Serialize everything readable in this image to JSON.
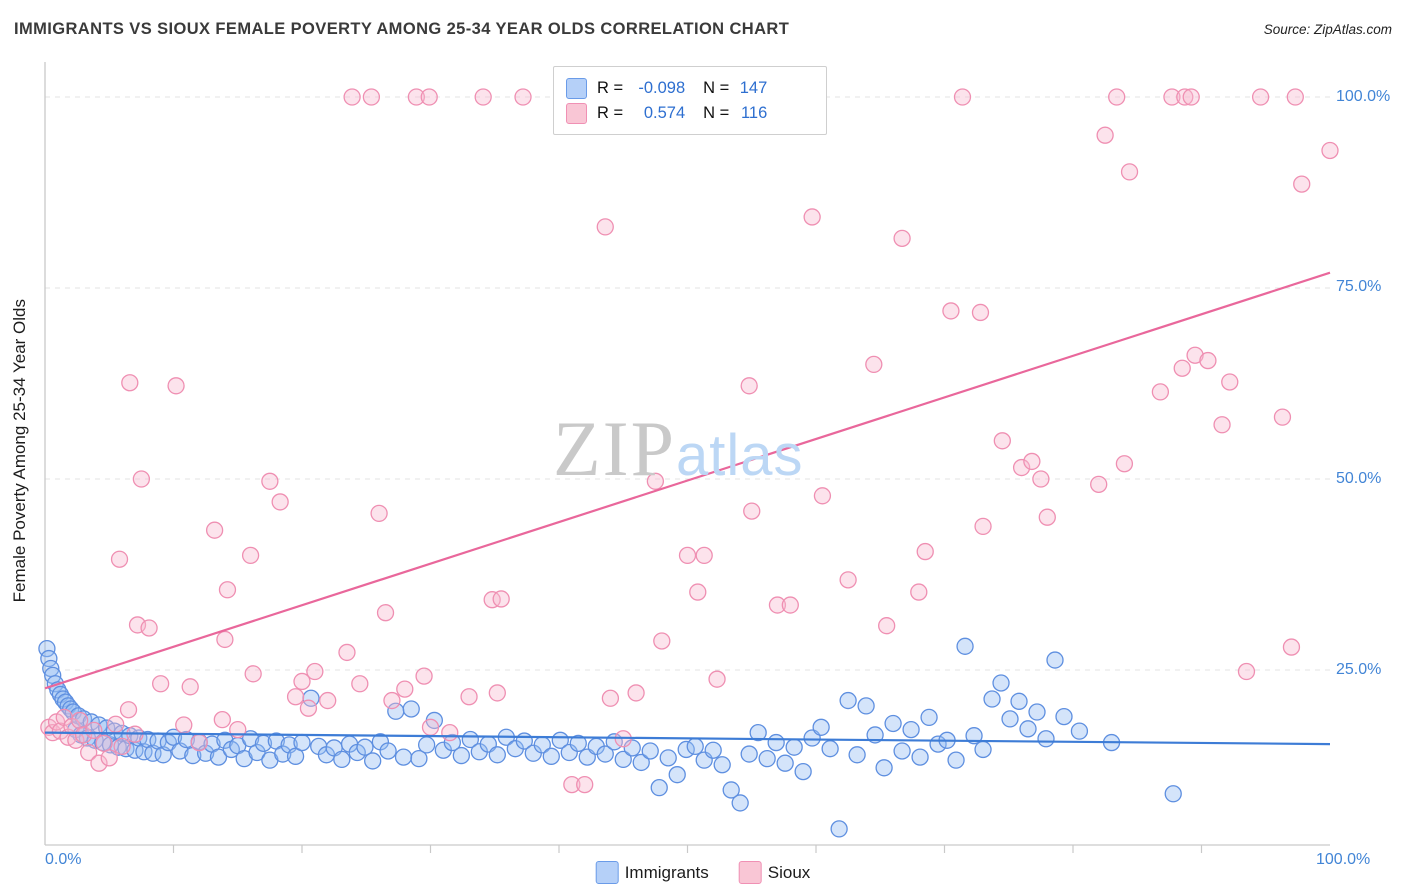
{
  "header": {
    "title": "IMMIGRANTS VS SIOUX FEMALE POVERTY AMONG 25-34 YEAR OLDS CORRELATION CHART",
    "source": "Source: ZipAtlas.com"
  },
  "stats_box": {
    "rows": [
      {
        "series": "Immigrants",
        "r_label": "R =",
        "r_value": "-0.098",
        "n_label": "N =",
        "n_value": "147"
      },
      {
        "series": "Sioux",
        "r_label": "R =",
        "r_value": "0.574",
        "n_label": "N =",
        "n_value": "116"
      }
    ]
  },
  "watermark": {
    "zip": "ZIP",
    "atlas": "atlas"
  },
  "y_axis": {
    "label": "Female Poverty Among 25-34 Year Olds",
    "ticks": [
      "100.0%",
      "75.0%",
      "50.0%",
      "25.0%"
    ]
  },
  "x_axis": {
    "min_label": "0.0%",
    "max_label": "100.0%"
  },
  "legend": [
    {
      "label": "Immigrants",
      "fill": "#b5d0f8",
      "stroke": "#6a9be8"
    },
    {
      "label": "Sioux",
      "fill": "#f9c6d5",
      "stroke": "#f090b4"
    }
  ],
  "chart_data": {
    "type": "scatter",
    "title": "IMMIGRANTS VS SIOUX FEMALE POVERTY AMONG 25-34 YEAR OLDS CORRELATION CHART",
    "xlabel": "",
    "ylabel": "Female Poverty Among 25-34 Year Olds",
    "xlim": [
      0,
      100
    ],
    "ylim": [
      0,
      105
    ],
    "grid": "horizontal-dashed",
    "gridlines": [
      100,
      75,
      50,
      25
    ],
    "legend_position": "bottom-center",
    "series": [
      {
        "name": "Immigrants",
        "r": -0.098,
        "n": 147,
        "fill": "#93bbf2",
        "stroke": "#5e8fe0",
        "points": [
          [
            0.15,
            27.8
          ],
          [
            0.3,
            26.5
          ],
          [
            0.45,
            25.2
          ],
          [
            0.6,
            24.3
          ],
          [
            0.8,
            23.2
          ],
          [
            1.0,
            22.4
          ],
          [
            1.2,
            21.8
          ],
          [
            1.4,
            21.2
          ],
          [
            1.6,
            20.8
          ],
          [
            1.8,
            20.3
          ],
          [
            2.0,
            19.9
          ],
          [
            2.2,
            19.5
          ],
          [
            2.4,
            17.2
          ],
          [
            2.6,
            19.0
          ],
          [
            2.8,
            16.5
          ],
          [
            3.0,
            18.6
          ],
          [
            3.3,
            16.1
          ],
          [
            3.6,
            18.2
          ],
          [
            3.9,
            15.8
          ],
          [
            4.2,
            17.8
          ],
          [
            4.5,
            15.5
          ],
          [
            4.8,
            17.4
          ],
          [
            5.1,
            15.2
          ],
          [
            5.4,
            17.0
          ],
          [
            5.7,
            14.9
          ],
          [
            6.0,
            16.7
          ],
          [
            6.3,
            14.7
          ],
          [
            6.6,
            16.4
          ],
          [
            7.0,
            14.5
          ],
          [
            7.3,
            16.1
          ],
          [
            7.7,
            14.3
          ],
          [
            8.0,
            15.9
          ],
          [
            8.4,
            14.1
          ],
          [
            8.8,
            15.7
          ],
          [
            9.2,
            13.9
          ],
          [
            9.6,
            15.5
          ],
          [
            10.0,
            16.2
          ],
          [
            10.5,
            14.4
          ],
          [
            11.0,
            15.9
          ],
          [
            11.5,
            13.8
          ],
          [
            12.0,
            15.6
          ],
          [
            12.5,
            14.1
          ],
          [
            13.0,
            15.3
          ],
          [
            13.5,
            13.6
          ],
          [
            14.0,
            15.8
          ],
          [
            14.5,
            14.6
          ],
          [
            15.0,
            15.1
          ],
          [
            15.5,
            13.4
          ],
          [
            16.0,
            16.0
          ],
          [
            16.5,
            14.2
          ],
          [
            17.0,
            15.4
          ],
          [
            17.5,
            13.2
          ],
          [
            18.0,
            15.7
          ],
          [
            18.5,
            14.0
          ],
          [
            19.0,
            15.2
          ],
          [
            19.5,
            13.7
          ],
          [
            20.0,
            15.5
          ],
          [
            20.7,
            21.3
          ],
          [
            21.3,
            15.0
          ],
          [
            21.9,
            13.9
          ],
          [
            22.5,
            14.8
          ],
          [
            23.1,
            13.3
          ],
          [
            23.7,
            15.3
          ],
          [
            24.3,
            14.2
          ],
          [
            24.9,
            14.9
          ],
          [
            25.5,
            13.1
          ],
          [
            26.1,
            15.6
          ],
          [
            26.7,
            14.4
          ],
          [
            27.3,
            19.6
          ],
          [
            27.9,
            13.6
          ],
          [
            28.5,
            19.9
          ],
          [
            29.1,
            13.4
          ],
          [
            29.7,
            15.2
          ],
          [
            30.3,
            18.4
          ],
          [
            31.0,
            14.5
          ],
          [
            31.7,
            15.5
          ],
          [
            32.4,
            13.8
          ],
          [
            33.1,
            15.9
          ],
          [
            33.8,
            14.3
          ],
          [
            34.5,
            15.3
          ],
          [
            35.2,
            13.9
          ],
          [
            35.9,
            16.2
          ],
          [
            36.6,
            14.7
          ],
          [
            37.3,
            15.7
          ],
          [
            38.0,
            14.1
          ],
          [
            38.7,
            15.2
          ],
          [
            39.4,
            13.7
          ],
          [
            40.1,
            15.8
          ],
          [
            40.8,
            14.2
          ],
          [
            41.5,
            15.4
          ],
          [
            42.2,
            13.6
          ],
          [
            42.9,
            15.0
          ],
          [
            43.6,
            14.0
          ],
          [
            44.3,
            15.6
          ],
          [
            45.0,
            13.3
          ],
          [
            45.7,
            14.8
          ],
          [
            46.4,
            12.9
          ],
          [
            47.1,
            14.4
          ],
          [
            47.8,
            9.6
          ],
          [
            48.5,
            13.5
          ],
          [
            49.2,
            11.3
          ],
          [
            49.9,
            14.6
          ],
          [
            50.6,
            15.0
          ],
          [
            51.3,
            13.2
          ],
          [
            52.0,
            14.5
          ],
          [
            52.7,
            12.6
          ],
          [
            53.4,
            9.3
          ],
          [
            54.1,
            7.6
          ],
          [
            54.8,
            14.0
          ],
          [
            55.5,
            16.8
          ],
          [
            56.2,
            13.4
          ],
          [
            56.9,
            15.5
          ],
          [
            57.6,
            12.8
          ],
          [
            58.3,
            14.9
          ],
          [
            59.0,
            11.7
          ],
          [
            59.7,
            16.1
          ],
          [
            60.4,
            17.5
          ],
          [
            61.1,
            14.7
          ],
          [
            61.8,
            4.2
          ],
          [
            62.5,
            21.0
          ],
          [
            63.2,
            13.9
          ],
          [
            63.9,
            20.3
          ],
          [
            64.6,
            16.5
          ],
          [
            65.3,
            12.2
          ],
          [
            66.0,
            18.0
          ],
          [
            66.7,
            14.4
          ],
          [
            67.4,
            17.2
          ],
          [
            68.1,
            13.6
          ],
          [
            68.8,
            18.8
          ],
          [
            69.5,
            15.3
          ],
          [
            70.2,
            15.8
          ],
          [
            70.9,
            13.2
          ],
          [
            71.6,
            28.1
          ],
          [
            72.3,
            16.4
          ],
          [
            73.0,
            14.6
          ],
          [
            73.7,
            21.2
          ],
          [
            74.4,
            23.3
          ],
          [
            75.1,
            18.6
          ],
          [
            75.8,
            20.9
          ],
          [
            76.5,
            17.3
          ],
          [
            77.2,
            19.5
          ],
          [
            77.9,
            16.0
          ],
          [
            78.6,
            26.3
          ],
          [
            79.3,
            18.9
          ],
          [
            80.5,
            17.0
          ],
          [
            83.0,
            15.5
          ],
          [
            87.8,
            8.8
          ]
        ]
      },
      {
        "name": "Sioux",
        "r": 0.574,
        "n": 116,
        "fill": "#f8bad0",
        "stroke": "#ef8fb2",
        "points": [
          [
            23.9,
            100
          ],
          [
            25.4,
            100
          ],
          [
            28.9,
            100
          ],
          [
            29.9,
            100
          ],
          [
            34.1,
            100
          ],
          [
            37.2,
            100
          ],
          [
            71.4,
            100
          ],
          [
            83.4,
            100
          ],
          [
            87.7,
            100
          ],
          [
            88.7,
            100
          ],
          [
            89.2,
            100
          ],
          [
            94.6,
            100
          ],
          [
            97.3,
            100
          ],
          [
            43.6,
            83.0
          ],
          [
            59.7,
            84.3
          ],
          [
            66.7,
            81.5
          ],
          [
            82.5,
            95.0
          ],
          [
            84.4,
            90.2
          ],
          [
            97.8,
            88.6
          ],
          [
            100.0,
            93.0
          ],
          [
            6.6,
            62.6
          ],
          [
            10.2,
            62.2
          ],
          [
            54.8,
            62.2
          ],
          [
            64.5,
            65.0
          ],
          [
            70.5,
            72.0
          ],
          [
            72.8,
            71.8
          ],
          [
            86.8,
            61.4
          ],
          [
            88.5,
            64.5
          ],
          [
            89.5,
            66.2
          ],
          [
            90.5,
            65.5
          ],
          [
            92.2,
            62.7
          ],
          [
            7.5,
            50.0
          ],
          [
            13.2,
            43.3
          ],
          [
            16.0,
            40.0
          ],
          [
            17.5,
            49.7
          ],
          [
            18.3,
            47.0
          ],
          [
            26.0,
            45.5
          ],
          [
            47.5,
            49.7
          ],
          [
            50.0,
            40.0
          ],
          [
            51.3,
            40.0
          ],
          [
            55.0,
            45.8
          ],
          [
            60.5,
            47.8
          ],
          [
            68.5,
            40.5
          ],
          [
            74.5,
            55.0
          ],
          [
            76.0,
            51.5
          ],
          [
            76.8,
            52.3
          ],
          [
            77.5,
            50.0
          ],
          [
            78.0,
            45.0
          ],
          [
            73.0,
            43.8
          ],
          [
            82.0,
            49.3
          ],
          [
            84.0,
            52.0
          ],
          [
            91.6,
            57.1
          ],
          [
            96.3,
            58.1
          ],
          [
            5.8,
            39.5
          ],
          [
            7.2,
            30.9
          ],
          [
            8.1,
            30.5
          ],
          [
            14.2,
            35.5
          ],
          [
            26.5,
            32.5
          ],
          [
            34.8,
            34.2
          ],
          [
            35.5,
            34.3
          ],
          [
            50.8,
            35.2
          ],
          [
            57.0,
            33.5
          ],
          [
            58.0,
            33.5
          ],
          [
            62.5,
            36.8
          ],
          [
            65.5,
            30.8
          ],
          [
            68.0,
            35.2
          ],
          [
            48.0,
            28.8
          ],
          [
            14.0,
            29.0
          ],
          [
            9.0,
            23.2
          ],
          [
            11.3,
            22.8
          ],
          [
            16.2,
            24.5
          ],
          [
            19.5,
            21.5
          ],
          [
            20.5,
            20.0
          ],
          [
            21.0,
            24.8
          ],
          [
            23.5,
            27.3
          ],
          [
            22.0,
            21.0
          ],
          [
            24.5,
            23.2
          ],
          [
            29.5,
            24.2
          ],
          [
            28.0,
            22.5
          ],
          [
            35.2,
            22.0
          ],
          [
            44.0,
            21.3
          ],
          [
            52.3,
            23.8
          ],
          [
            93.5,
            24.8
          ],
          [
            97.0,
            28.0
          ],
          [
            33.0,
            21.5
          ],
          [
            46.0,
            22.0
          ],
          [
            20.0,
            23.5
          ],
          [
            27.0,
            21.0
          ],
          [
            0.3,
            17.5
          ],
          [
            0.6,
            16.8
          ],
          [
            0.9,
            18.2
          ],
          [
            1.2,
            17.0
          ],
          [
            1.5,
            18.8
          ],
          [
            1.8,
            16.2
          ],
          [
            2.1,
            17.6
          ],
          [
            2.4,
            15.8
          ],
          [
            2.7,
            18.4
          ],
          [
            3.0,
            16.5
          ],
          [
            3.4,
            14.2
          ],
          [
            3.8,
            17.1
          ],
          [
            4.2,
            12.8
          ],
          [
            4.6,
            15.4
          ],
          [
            5.0,
            13.5
          ],
          [
            5.5,
            17.9
          ],
          [
            6.0,
            15.0
          ],
          [
            6.5,
            19.8
          ],
          [
            7.0,
            16.6
          ],
          [
            10.8,
            17.8
          ],
          [
            12.0,
            15.5
          ],
          [
            13.8,
            18.5
          ],
          [
            15.0,
            17.2
          ],
          [
            30.0,
            17.5
          ],
          [
            31.5,
            16.8
          ],
          [
            45.0,
            16.0
          ],
          [
            41.0,
            10.0
          ],
          [
            42.0,
            10.0
          ]
        ]
      }
    ],
    "trendlines": [
      {
        "name": "Immigrants",
        "color": "#3d7cd6",
        "x0": 0,
        "y0": 16.8,
        "x1": 100,
        "y1": 15.3
      },
      {
        "name": "Sioux",
        "color": "#e9679b",
        "x0": 0,
        "y0": 22.6,
        "x1": 100,
        "y1": 77.0
      }
    ]
  }
}
